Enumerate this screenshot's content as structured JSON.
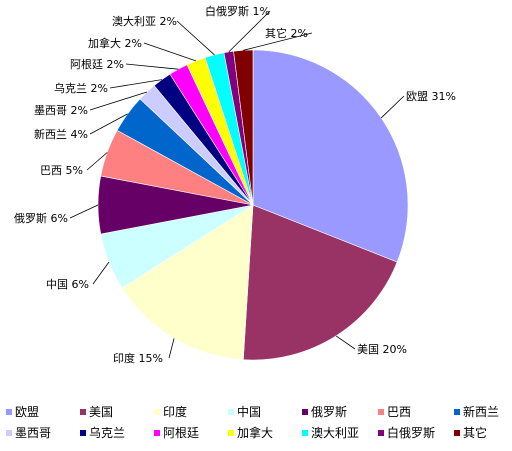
{
  "chart_data": {
    "type": "pie",
    "categories": [
      "欧盟",
      "美国",
      "印度",
      "中国",
      "俄罗斯",
      "巴西",
      "新西兰",
      "墨西哥",
      "乌克兰",
      "阿根廷",
      "加拿大",
      "澳大利亚",
      "白俄罗斯",
      "其它"
    ],
    "values": [
      31,
      20,
      15,
      6,
      6,
      5,
      4,
      2,
      2,
      2,
      2,
      2,
      1,
      2
    ],
    "labels": [
      "欧盟 31%",
      "美国 20%",
      "印度 15%",
      "中国 6%",
      "俄罗斯 6%",
      "巴西 5%",
      "新西兰 4%",
      "墨西哥 2%",
      "乌克兰 2%",
      "阿根廷 2%",
      "加拿大 2%",
      "澳大利亚 2%",
      "白俄罗斯 1%",
      "其它 2%"
    ],
    "colors": [
      "#9999ff",
      "#993366",
      "#ffffcc",
      "#ccffff",
      "#660066",
      "#ff8080",
      "#0066cc",
      "#ccccff",
      "#000080",
      "#ff00ff",
      "#ffff00",
      "#00ffff",
      "#800080",
      "#800000"
    ],
    "legend_position": "bottom"
  }
}
